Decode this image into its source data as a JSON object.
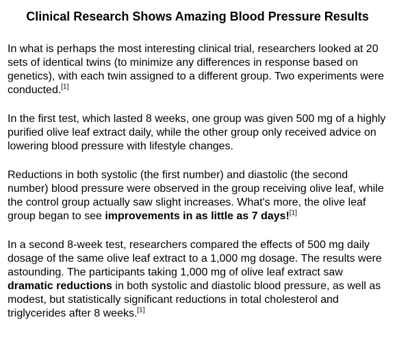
{
  "title": "Clinical Research Shows Amazing Blood Pressure Results",
  "paragraphs": [
    [
      "In what is perhaps the most interesting clinical trial, researchers looked at 20 sets of identical twins (to minimize any differences in response based on genetics), with each twin assigned to a different group. Two experiments were conducted.",
      "[1]"
    ],
    [
      "In the first test, which lasted 8 weeks, one group was given 500 mg of a highly purified olive leaf extract daily, while the other group only received advice on lowering blood pressure with lifestyle changes."
    ],
    [
      "Reductions in both systolic (the first number) and diastolic (the second number) blood pressure were observed in the group receiving olive leaf, while the control group actually saw slight increases. What's more, the olive leaf group began to see ",
      "improvements in as little as 7 days!",
      "[1]"
    ],
    [
      "In a second 8-week test, researchers compared the effects of 500 mg daily dosage of the same olive leaf extract to a 1,000 mg dosage. The results were astounding. The participants taking 1,000 mg of olive leaf extract saw ",
      "dramatic reductions",
      " in both systolic and diastolic blood pressure, as well as modest, but statistically significant reductions in total cholesterol and triglycerides after 8 weeks.",
      "[1]"
    ]
  ]
}
